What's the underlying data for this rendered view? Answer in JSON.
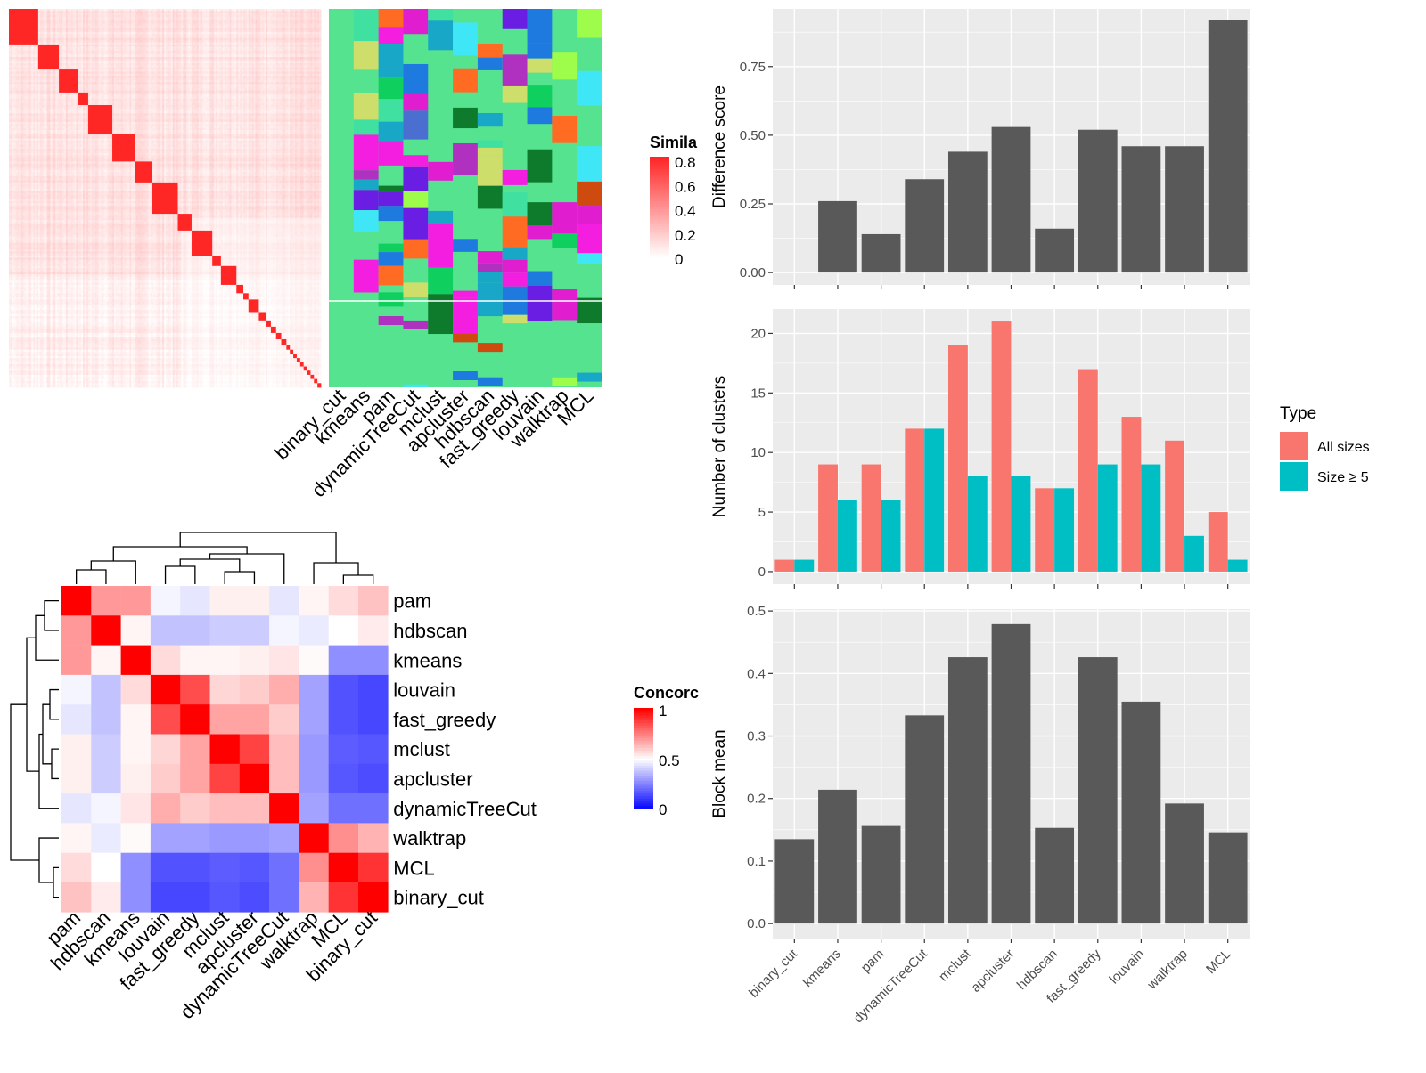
{
  "colors": {
    "panel_bg": "#ebebeb",
    "grid": "#ffffff",
    "bar_gray": "#595959",
    "all_sizes": "#F8766D",
    "size_ge_5": "#00BFC4",
    "heat_red": "#ff0000",
    "heat_white": "#ffffff",
    "heat_blue": "#0000ff",
    "cluster_bg": "#55e38f"
  },
  "methods_order": [
    "binary_cut",
    "kmeans",
    "pam",
    "dynamicTreeCut",
    "mclust",
    "apcluster",
    "hdbscan",
    "fast_greedy",
    "louvain",
    "walktrap",
    "MCL"
  ],
  "similarity_panel": {
    "legend_title": "Simila",
    "legend_ticks": [
      "0.8",
      "0.6",
      "0.4",
      "0.2",
      "0"
    ],
    "column_labels": [
      "binary_cut",
      "kmeans",
      "pam",
      "dynamicTreeCut",
      "mclust",
      "apcluster",
      "hdbscan",
      "fast_greedy",
      "louvain",
      "walktrap",
      "MCL"
    ],
    "cluster_blocks": [
      17,
      12,
      11,
      6,
      14,
      13,
      10,
      15,
      8,
      12,
      5,
      9,
      4,
      3,
      6,
      4,
      3,
      3,
      3,
      3,
      2,
      2,
      2,
      2,
      2,
      2,
      2,
      2,
      2,
      2
    ]
  },
  "concordance_panel": {
    "legend_title": "Concorc",
    "legend_ticks": [
      "1",
      "0.5",
      "0"
    ],
    "row_labels": [
      "pam",
      "hdbscan",
      "kmeans",
      "louvain",
      "fast_greedy",
      "mclust",
      "apcluster",
      "dynamicTreeCut",
      "walktrap",
      "MCL",
      "binary_cut"
    ],
    "col_labels": [
      "pam",
      "hdbscan",
      "kmeans",
      "louvain",
      "fast_greedy",
      "mclust",
      "apcluster",
      "dynamicTreeCut",
      "walktrap",
      "MCL",
      "binary_cut"
    ],
    "matrix": [
      [
        1.0,
        0.7,
        0.7,
        0.48,
        0.45,
        0.53,
        0.53,
        0.45,
        0.52,
        0.57,
        0.62
      ],
      [
        0.7,
        1.0,
        0.52,
        0.38,
        0.38,
        0.4,
        0.4,
        0.48,
        0.46,
        0.5,
        0.54
      ],
      [
        0.7,
        0.52,
        1.0,
        0.57,
        0.52,
        0.52,
        0.53,
        0.55,
        0.51,
        0.28,
        0.28
      ],
      [
        0.48,
        0.38,
        0.57,
        1.0,
        0.85,
        0.58,
        0.6,
        0.66,
        0.32,
        0.16,
        0.14
      ],
      [
        0.45,
        0.38,
        0.52,
        0.85,
        1.0,
        0.68,
        0.68,
        0.6,
        0.32,
        0.16,
        0.14
      ],
      [
        0.53,
        0.4,
        0.52,
        0.58,
        0.68,
        1.0,
        0.87,
        0.63,
        0.3,
        0.18,
        0.17
      ],
      [
        0.53,
        0.4,
        0.53,
        0.6,
        0.68,
        0.87,
        1.0,
        0.63,
        0.3,
        0.17,
        0.15
      ],
      [
        0.45,
        0.48,
        0.55,
        0.66,
        0.6,
        0.63,
        0.63,
        1.0,
        0.32,
        0.22,
        0.22
      ],
      [
        0.52,
        0.46,
        0.51,
        0.32,
        0.32,
        0.3,
        0.3,
        0.32,
        1.0,
        0.72,
        0.65
      ],
      [
        0.57,
        0.5,
        0.28,
        0.16,
        0.16,
        0.18,
        0.17,
        0.22,
        0.72,
        1.0,
        0.9
      ],
      [
        0.62,
        0.54,
        0.28,
        0.14,
        0.14,
        0.17,
        0.15,
        0.22,
        0.65,
        0.9,
        1.0
      ]
    ]
  },
  "chart_data": [
    {
      "type": "bar",
      "ylabel": "Difference score",
      "categories": [
        "binary_cut",
        "kmeans",
        "pam",
        "dynamicTreeCut",
        "mclust",
        "apcluster",
        "hdbscan",
        "fast_greedy",
        "louvain",
        "walktrap",
        "MCL"
      ],
      "values": [
        0.0,
        0.26,
        0.14,
        0.34,
        0.44,
        0.53,
        0.16,
        0.52,
        0.46,
        0.46,
        0.92
      ],
      "ylim": [
        -0.045,
        0.96
      ],
      "yticks": [
        0.0,
        0.25,
        0.5,
        0.75
      ],
      "ytick_labels": [
        "0.00",
        "0.25",
        "0.50",
        "0.75"
      ],
      "grid": true
    },
    {
      "type": "bar",
      "ylabel": "Number of clusters",
      "categories": [
        "binary_cut",
        "kmeans",
        "pam",
        "dynamicTreeCut",
        "mclust",
        "apcluster",
        "hdbscan",
        "fast_greedy",
        "louvain",
        "walktrap",
        "MCL"
      ],
      "series": [
        {
          "name": "All sizes",
          "values": [
            1,
            9,
            9,
            12,
            19,
            21,
            7,
            17,
            13,
            11,
            5
          ]
        },
        {
          "name": "Size ≥ 5",
          "values": [
            1,
            6,
            6,
            12,
            8,
            8,
            7,
            9,
            9,
            3,
            1
          ]
        }
      ],
      "ylim": [
        -1.05,
        22.05
      ],
      "yticks": [
        0,
        5,
        10,
        15,
        20
      ],
      "ytick_labels": [
        "0",
        "5",
        "10",
        "15",
        "20"
      ],
      "legend_title": "Type",
      "legend_position": "right",
      "grid": true
    },
    {
      "type": "bar",
      "ylabel": "Block mean",
      "categories": [
        "binary_cut",
        "kmeans",
        "pam",
        "dynamicTreeCut",
        "mclust",
        "apcluster",
        "hdbscan",
        "fast_greedy",
        "louvain",
        "walktrap",
        "MCL"
      ],
      "values": [
        0.135,
        0.214,
        0.156,
        0.333,
        0.426,
        0.479,
        0.153,
        0.426,
        0.355,
        0.192,
        0.146
      ],
      "ylim": [
        -0.024,
        0.503
      ],
      "yticks": [
        0.0,
        0.1,
        0.2,
        0.3,
        0.4,
        0.5
      ],
      "ytick_labels": [
        "0.0",
        "0.1",
        "0.2",
        "0.3",
        "0.4",
        "0.5"
      ],
      "grid": true
    }
  ]
}
